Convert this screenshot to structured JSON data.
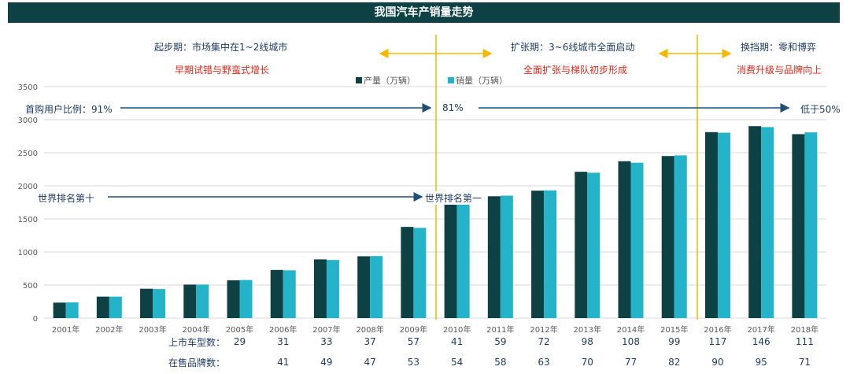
{
  "title": "我国汽车产销量走势",
  "colors": {
    "production": "#0d4144",
    "sales": "#24b3c8",
    "arrow": "#1f4e79",
    "divider": "#f5b800",
    "phase_text": "#e8261b",
    "label_text": "#1f3d66"
  },
  "phases": [
    {
      "name": "起步期：市场集中在1~2线城市",
      "desc": "早期试错与野蛮式增长"
    },
    {
      "name": "扩张期：3~6线城市全面启动",
      "desc": "全面扩张与梯队初步形成"
    },
    {
      "name": "换挡期：零和博弈",
      "desc": "消费升级与品牌向上"
    }
  ],
  "first_buyer": {
    "label": "首购用户比例：91%",
    "mid": "81%",
    "end": "低于50%"
  },
  "world_rank": {
    "start": "世界排名第十",
    "end": "世界排名第一"
  },
  "rows": {
    "models_label": "上市车型数：",
    "models": [
      "",
      "",
      "",
      "",
      "29",
      "31",
      "33",
      "37",
      "57",
      "41",
      "59",
      "72",
      "98",
      "108",
      "99",
      "117",
      "146",
      "111"
    ],
    "brands_label": "在售品牌数：",
    "brands": [
      "",
      "",
      "",
      "",
      "",
      "41",
      "49",
      "47",
      "53",
      "54",
      "58",
      "63",
      "70",
      "77",
      "82",
      "90",
      "95",
      "71"
    ]
  },
  "chart_data": {
    "type": "bar",
    "categories": [
      "2001年",
      "2002年",
      "2003年",
      "2004年",
      "2005年",
      "2006年",
      "2007年",
      "2008年",
      "2009年",
      "2010年",
      "2011年",
      "2012年",
      "2013年",
      "2014年",
      "2015年",
      "2016年",
      "2017年",
      "2018年"
    ],
    "series": [
      {
        "name": "产量（万辆）",
        "values": [
          234,
          325,
          444,
          507,
          571,
          728,
          888,
          935,
          1379,
          1826,
          1842,
          1927,
          2212,
          2372,
          2450,
          2812,
          2902,
          2781
        ]
      },
      {
        "name": "销量（万辆）",
        "values": [
          237,
          325,
          439,
          507,
          576,
          722,
          879,
          938,
          1364,
          1806,
          1851,
          1931,
          2198,
          2349,
          2460,
          2803,
          2888,
          2808
        ]
      }
    ],
    "yticks": [
      0,
      500,
      1000,
      1500,
      2000,
      2500,
      3000,
      3500
    ],
    "ylim": [
      0,
      3500
    ],
    "legend": "top-center",
    "grid": true
  }
}
